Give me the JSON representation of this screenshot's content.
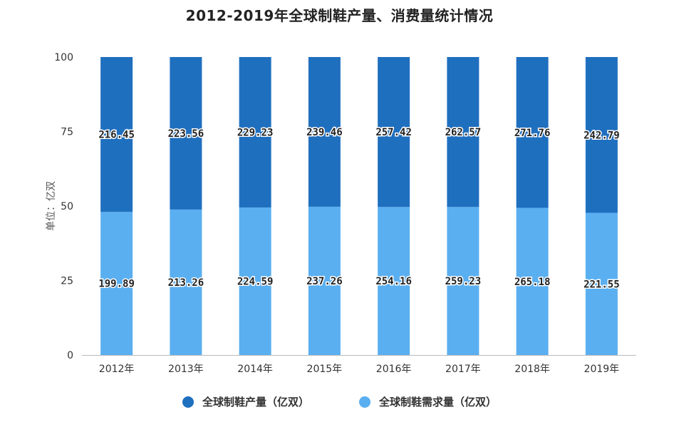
{
  "chart_data": {
    "type": "bar",
    "stacked": "percent",
    "title": "2012-2019年全球制鞋产量、消费量统计情况",
    "ylabel": "单位：亿双",
    "xlabel": "",
    "ylim": [
      0,
      100
    ],
    "yticks": [
      "0",
      "25",
      "50",
      "75",
      "100"
    ],
    "categories": [
      "2012年",
      "2013年",
      "2014年",
      "2015年",
      "2016年",
      "2017年",
      "2018年",
      "2019年"
    ],
    "series": [
      {
        "name": "全球制鞋产量（亿双）",
        "values": [
          216.45,
          223.56,
          229.23,
          239.46,
          257.42,
          262.57,
          271.76,
          242.79
        ],
        "labels": [
          "216.45",
          "223.56",
          "229.23",
          "239.46",
          "257.42",
          "262.57",
          "271.76",
          "242.79"
        ],
        "color": "#1f6fbf"
      },
      {
        "name": "全球制鞋需求量（亿双）",
        "values": [
          199.89,
          213.26,
          224.59,
          237.26,
          254.16,
          259.23,
          265.18,
          221.55
        ],
        "labels": [
          "199.89",
          "213.26",
          "224.59",
          "237.26",
          "254.16",
          "259.23",
          "265.18",
          "221.55"
        ],
        "color": "#5aaff0"
      }
    ],
    "legend_position": "bottom-center",
    "grid": false
  }
}
